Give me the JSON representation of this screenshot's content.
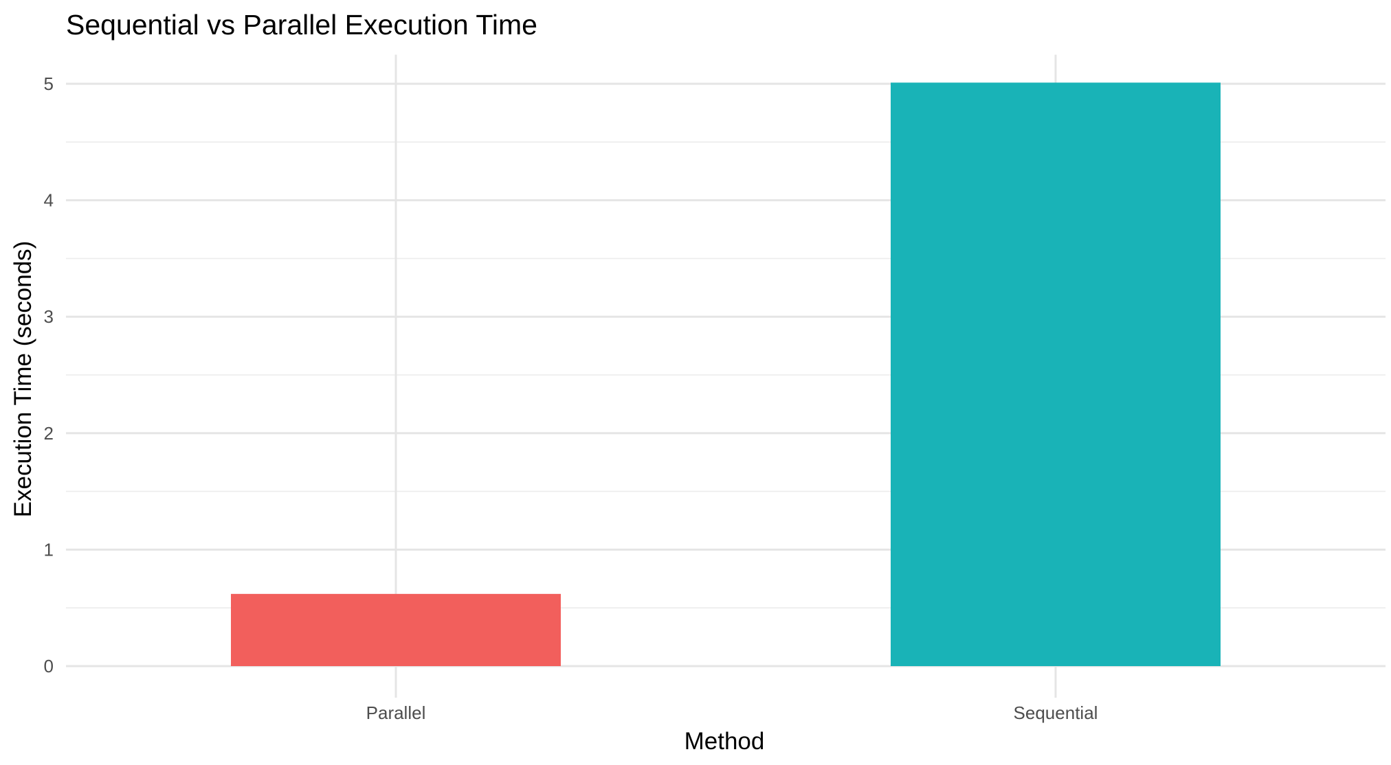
{
  "chart_data": {
    "type": "bar",
    "title": "Sequential vs Parallel Execution Time",
    "xlabel": "Method",
    "ylabel": "Execution Time (seconds)",
    "categories": [
      "Parallel",
      "Sequential"
    ],
    "values": [
      0.62,
      5.01
    ],
    "colors": [
      "#F25F5C",
      "#19B3B7"
    ],
    "ylim": [
      0,
      5.25
    ],
    "yticks": [
      0,
      1,
      2,
      3,
      4,
      5
    ],
    "grid": true,
    "legend": "none"
  }
}
